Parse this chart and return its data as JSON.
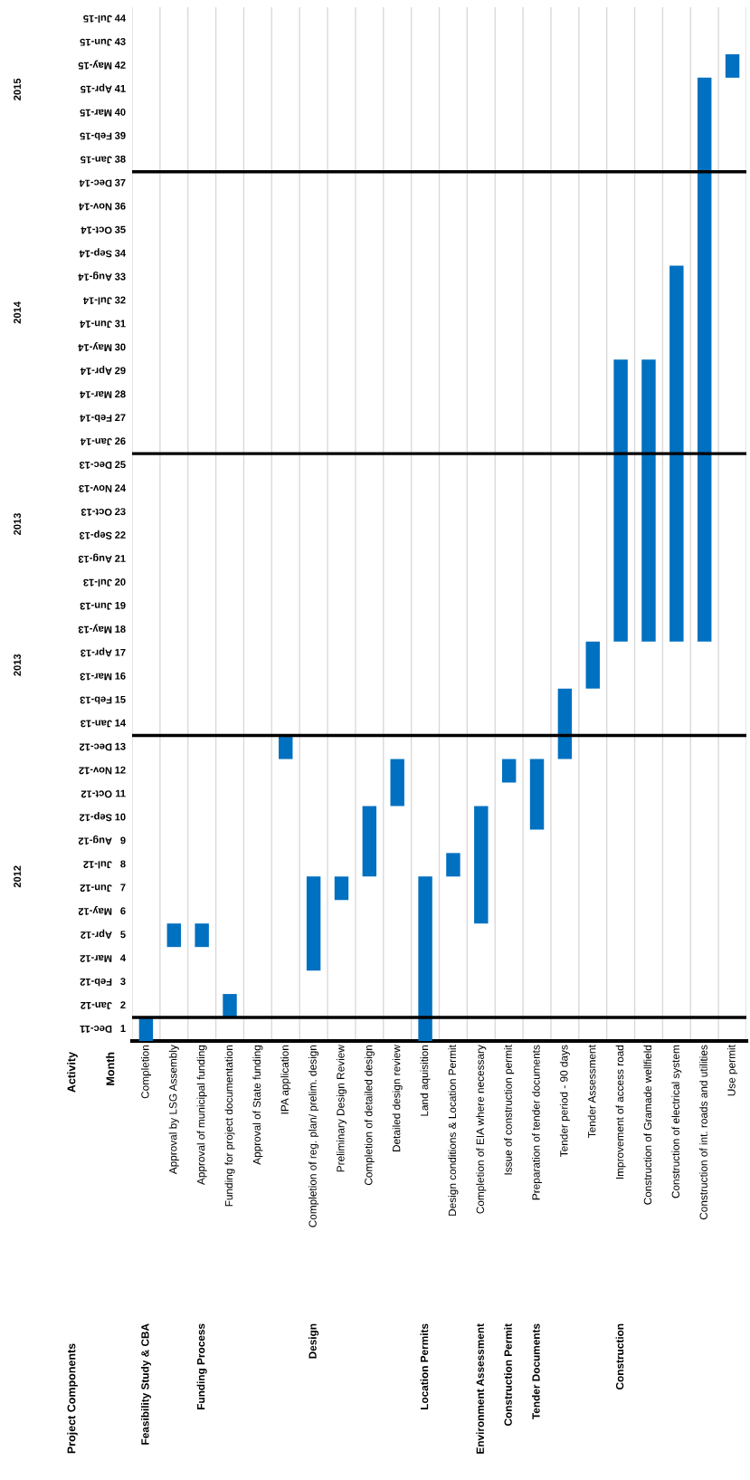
{
  "chart_data": {
    "type": "bar",
    "categories": [
      "Completion",
      "Approval by LSG Assembly",
      "Approval of municipal funding",
      "Funding for project documentation",
      "Approval of State funding",
      "IPA application",
      "Completion of reg. plan/ prelim. design",
      "Preliminary Design Review",
      "Completion of detailed design",
      "Detailed design review",
      "Land aquisition",
      "Design conditions & Location Permit",
      "Completion of EIA where necessary",
      "Issue of construction permit",
      "Preparation of tender documents",
      "Tender period - 90 days",
      "Tender Assessment",
      "Improvement of access road",
      "Construction of Gramade wellfield",
      "Construction of electrical system",
      "Construction of int. roads and utilities",
      "Use permit"
    ],
    "base": [
      0.5,
      4.5,
      4.5,
      1.5,
      null,
      12.5,
      3.5,
      6.5,
      7.5,
      10.5,
      0.5,
      7.5,
      5.5,
      11.5,
      9.5,
      12.5,
      15.5,
      17.5,
      17.5,
      17.5,
      17.5,
      41.5
    ],
    "values": [
      1,
      1,
      1,
      1,
      null,
      1,
      4,
      1,
      3,
      2,
      7,
      1,
      5,
      1,
      3,
      3,
      2,
      12,
      12,
      16,
      24,
      1
    ],
    "color": "#0070c0",
    "ylim": [
      0.5,
      44.5
    ],
    "yticks": [
      1,
      2,
      3,
      4,
      5,
      6,
      7,
      8,
      9,
      10,
      11,
      12,
      13,
      14,
      15,
      16,
      17,
      18,
      19,
      20,
      21,
      22,
      23,
      24,
      25,
      26,
      27,
      28,
      29,
      30,
      31,
      32,
      33,
      34,
      35,
      36,
      37,
      38,
      39,
      40,
      41,
      42,
      43,
      44
    ],
    "grid": "x",
    "ref_lines": [
      {
        "axis": "y",
        "value": 1.5,
        "color": "#000000"
      },
      {
        "axis": "y",
        "value": 13.5,
        "color": "#000000"
      },
      {
        "axis": "y",
        "value": 25.5,
        "color": "#000000"
      },
      {
        "axis": "y",
        "value": 37.5,
        "color": "#000000"
      }
    ],
    "annotations": [
      "Project Components",
      "Activity",
      "Month",
      "Feasibility Study & CBA",
      "Funding Process",
      "Design",
      "Location Permits",
      "Environment Assessment",
      "Construction Permit",
      "Tender Documents",
      "Construction",
      "Dec-11",
      "Jan-12",
      "Feb-12",
      "Mar-12",
      "Apr-12",
      "May-12",
      "Jun-12",
      "Jul-12",
      "Aug-12",
      "Sep-12",
      "Oct-12",
      "Nov-12",
      "Dec-12",
      "Jan-13",
      "Feb-13",
      "Mar-13",
      "Apr-13",
      "May-13",
      "Jun-13",
      "Jul-13",
      "Aug-13",
      "Sep-13",
      "Oct-13",
      "Nov-13",
      "Dec-13",
      "Jan-14",
      "Feb-14",
      "Mar-14",
      "Apr-14",
      "May-14",
      "Jun-14",
      "Jul-14",
      "Aug-14",
      "Sep-14",
      "Oct-14",
      "Nov-14",
      "Dec-14",
      "Jan-15",
      "Feb-15",
      "Mar-15",
      "Apr-15",
      "May-15",
      "Jun-15",
      "Jul-15",
      "2012",
      "2013",
      "2013",
      "2014",
      "2015"
    ]
  }
}
